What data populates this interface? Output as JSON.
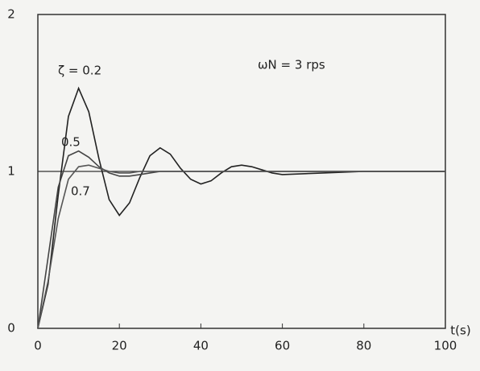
{
  "chart_data": {
    "type": "line",
    "x_label": "t(s)",
    "annotations": [
      "ζ = 0.2",
      "0.5",
      "0.7",
      "ωN = 3 rps"
    ],
    "x": [
      0,
      2.5,
      5,
      7.5,
      10,
      12.5,
      15,
      17.5,
      20,
      22.5,
      25,
      27.5,
      30,
      32.5,
      35,
      37.5,
      40,
      42.5,
      45,
      47.5,
      50,
      52.5,
      55,
      57.5,
      60,
      70,
      80,
      90,
      100
    ],
    "series": [
      {
        "name": "ζ = 0.2",
        "color": "#222222",
        "values": [
          0,
          0.28,
          0.85,
          1.35,
          1.53,
          1.38,
          1.08,
          0.82,
          0.72,
          0.8,
          0.96,
          1.1,
          1.15,
          1.11,
          1.02,
          0.95,
          0.92,
          0.94,
          0.99,
          1.03,
          1.04,
          1.03,
          1.01,
          0.99,
          0.98,
          0.99,
          1,
          1,
          1
        ]
      },
      {
        "name": "0.5",
        "color": "#444444",
        "values": [
          0,
          0.45,
          0.9,
          1.1,
          1.13,
          1.09,
          1.03,
          0.99,
          0.97,
          0.97,
          0.98,
          0.99,
          1,
          1,
          1,
          1,
          1,
          1,
          1,
          1,
          1,
          1,
          1,
          1,
          1,
          1,
          1,
          1,
          1
        ]
      },
      {
        "name": "0.7",
        "color": "#555555",
        "values": [
          0,
          0.3,
          0.7,
          0.95,
          1.03,
          1.04,
          1.02,
          1,
          0.99,
          0.99,
          1,
          1,
          1,
          1,
          1,
          1,
          1,
          1,
          1,
          1,
          1,
          1,
          1,
          1,
          1,
          1,
          1,
          1,
          1
        ]
      }
    ],
    "reference_line": 1,
    "xlim": [
      0,
      100
    ],
    "xticks": [
      0,
      20,
      40,
      60,
      80,
      100
    ],
    "ylim": [
      0,
      2
    ],
    "yticks": [
      0,
      1,
      2
    ]
  }
}
